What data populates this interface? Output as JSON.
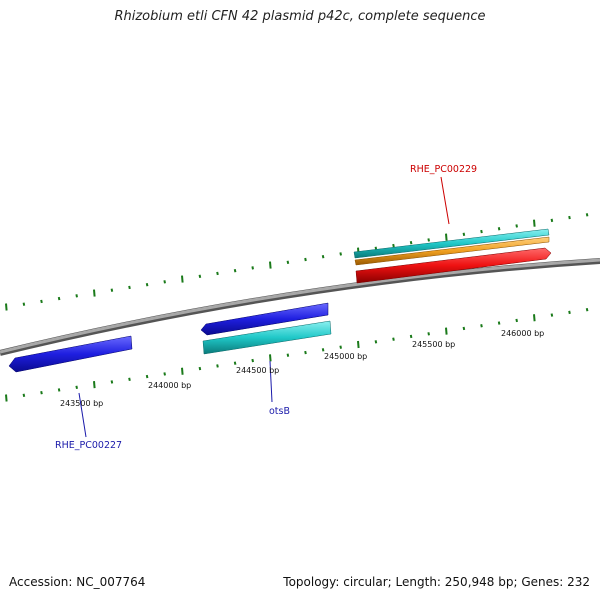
{
  "title": "Rhizobium etli CFN 42 plasmid p42c, complete sequence",
  "footer": {
    "accession": "Accession: NC_007764",
    "stats": "Topology: circular; Length: 250,948 bp; Genes: 232"
  },
  "ruler_labels": [
    "243500 bp",
    "244000 bp",
    "244500 bp",
    "245000 bp",
    "245500 bp",
    "246000 bp"
  ],
  "gene_labels": {
    "rhe_pc00227": "RHE_PC00227",
    "otsb": "otsB",
    "rhe_pc00229": "RHE_PC00229"
  },
  "colors": {
    "backbone": "#888888",
    "tick": "#1a7a1a",
    "forward_cds": "#2020dd",
    "forward_gene": "#1fc8c8",
    "reverse_cds": "#ee1111",
    "reverse_gene": "#f0a020",
    "label_blue": "#1a1aaa",
    "label_red": "#cc0000"
  }
}
